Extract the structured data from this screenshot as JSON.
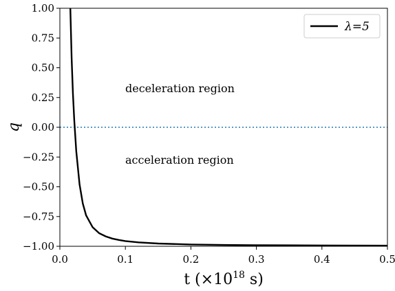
{
  "chart_data": {
    "type": "line",
    "xlabel_main": "t (×10",
    "xlabel_exp": "18",
    "xlabel_end": " s)",
    "ylabel": "q",
    "xlim": [
      0.0,
      0.5
    ],
    "ylim": [
      -1.0,
      1.0
    ],
    "xticks": [
      "0.0",
      "0.1",
      "0.2",
      "0.3",
      "0.4",
      "0.5"
    ],
    "yticks": [
      "1.00",
      "0.75",
      "0.50",
      "0.25",
      "0.00",
      "−0.25",
      "−0.50",
      "−0.75",
      "−1.00"
    ],
    "legend": {
      "label": "λ=5",
      "position": "top-right"
    },
    "annotations": [
      "deceleration region",
      "acceleration region"
    ],
    "reference_line": {
      "y": 0.0,
      "style": "dotted",
      "color": "#1f77b4"
    },
    "series": [
      {
        "name": "λ=5",
        "color": "#000000",
        "x": [
          0.016,
          0.018,
          0.02,
          0.022,
          0.025,
          0.03,
          0.035,
          0.04,
          0.05,
          0.06,
          0.07,
          0.08,
          0.09,
          0.1,
          0.12,
          0.15,
          0.2,
          0.25,
          0.3,
          0.35,
          0.4,
          0.45,
          0.5
        ],
        "values": [
          1.0,
          0.58,
          0.28,
          0.06,
          -0.2,
          -0.48,
          -0.64,
          -0.74,
          -0.84,
          -0.89,
          -0.917,
          -0.935,
          -0.947,
          -0.956,
          -0.967,
          -0.977,
          -0.985,
          -0.989,
          -0.991,
          -0.992,
          -0.993,
          -0.994,
          -0.995
        ]
      }
    ]
  }
}
